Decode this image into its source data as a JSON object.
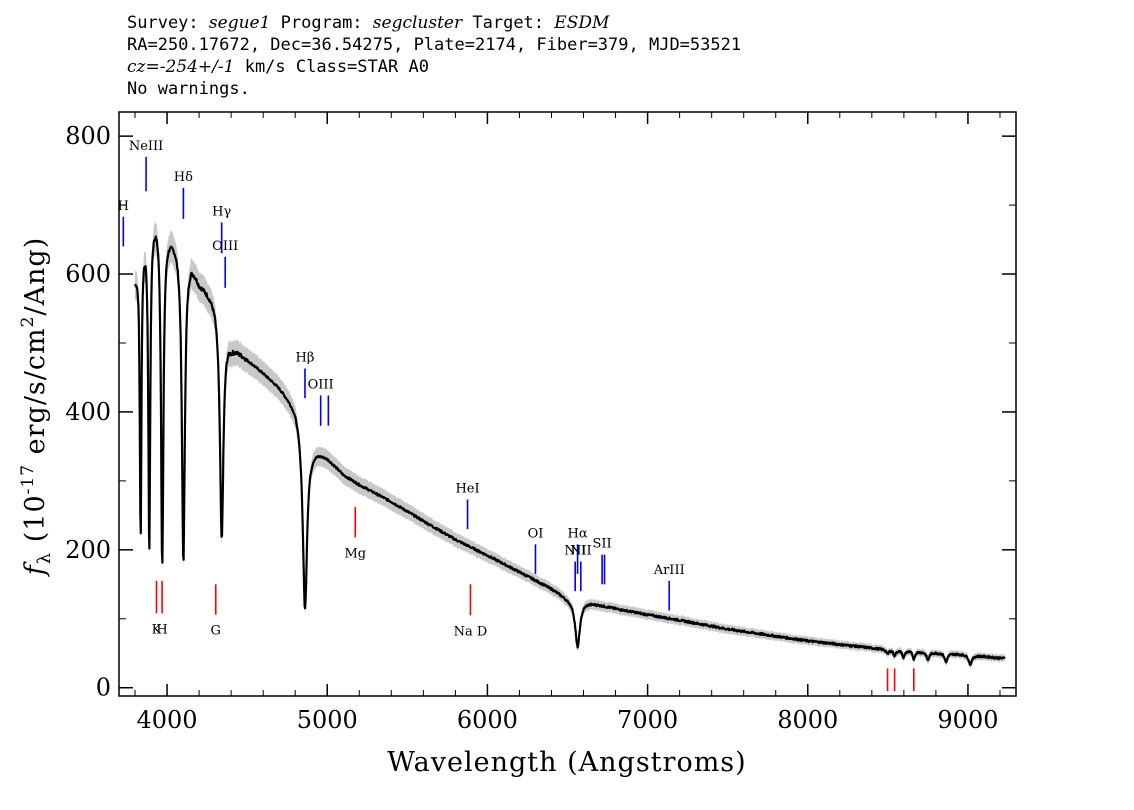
{
  "header": {
    "survey_label": "Survey:",
    "survey": "segue1",
    "program_label": "Program:",
    "program": "segcluster",
    "target_label": "Target:",
    "target": "ESDM",
    "line2": "RA=250.17672, Dec=36.54275, Plate=2174, Fiber=379, MJD=53521",
    "cz_label": "cz=",
    "cz": "-254+/-1",
    "cz_rest": " km/s Class=STAR A0",
    "warnings": "No warnings."
  },
  "chart_data": {
    "type": "line",
    "xlabel": "Wavelength (Angstroms)",
    "ylabel_prefix": "f",
    "ylabel_sub": "λ",
    "ylabel_rest": " (10",
    "ylabel_exp": "-17",
    "ylabel_units": " erg/s/cm",
    "ylabel_units_exp": "2",
    "ylabel_end": "/Ang)",
    "xlim": [
      3700,
      9300
    ],
    "ylim": [
      -12,
      835
    ],
    "x_ticks": [
      4000,
      5000,
      6000,
      7000,
      8000,
      9000
    ],
    "y_ticks": [
      0,
      200,
      400,
      600,
      800
    ],
    "line_color": "#000000",
    "error_color": "#b0b0b0",
    "emission_color": "#0000ff",
    "absorption_color": "#ff0000",
    "continuum": [
      [
        3800,
        600
      ],
      [
        3850,
        660
      ],
      [
        3900,
        690
      ],
      [
        3950,
        695
      ],
      [
        4000,
        668
      ],
      [
        4050,
        655
      ],
      [
        4150,
        625
      ],
      [
        4200,
        592
      ],
      [
        4300,
        565
      ],
      [
        4400,
        500
      ],
      [
        4500,
        478
      ],
      [
        4600,
        458
      ],
      [
        4700,
        437
      ],
      [
        4800,
        410
      ],
      [
        4900,
        352
      ],
      [
        5000,
        335
      ],
      [
        5100,
        310
      ],
      [
        5200,
        295
      ],
      [
        5400,
        270
      ],
      [
        5600,
        242
      ],
      [
        5800,
        215
      ],
      [
        6000,
        192
      ],
      [
        6200,
        168
      ],
      [
        6400,
        144
      ],
      [
        6500,
        130
      ],
      [
        6600,
        126
      ],
      [
        6800,
        115
      ],
      [
        7000,
        106
      ],
      [
        7200,
        98
      ],
      [
        7500,
        85
      ],
      [
        8000,
        68
      ],
      [
        8500,
        55
      ],
      [
        9000,
        48
      ],
      [
        9200,
        43
      ]
    ],
    "absorption_features": [
      {
        "center": 3835,
        "depth": 420,
        "width": 6
      },
      {
        "center": 3889,
        "depth": 480,
        "width": 7
      },
      {
        "center": 3970,
        "depth": 500,
        "width": 9
      },
      {
        "center": 4102,
        "depth": 455,
        "width": 11
      },
      {
        "center": 4341,
        "depth": 320,
        "width": 13
      },
      {
        "center": 4861,
        "depth": 260,
        "width": 16
      },
      {
        "center": 6563,
        "depth": 68,
        "width": 18
      },
      {
        "center": 8498,
        "depth": 6,
        "width": 8
      },
      {
        "center": 8542,
        "depth": 8,
        "width": 8
      },
      {
        "center": 8598,
        "depth": 10,
        "width": 8
      },
      {
        "center": 8662,
        "depth": 11,
        "width": 8
      },
      {
        "center": 8750,
        "depth": 12,
        "width": 9
      },
      {
        "center": 8863,
        "depth": 13,
        "width": 10
      },
      {
        "center": 9015,
        "depth": 14,
        "width": 12
      }
    ],
    "emission_lines": [
      {
        "label": "NeIII",
        "x": 3869,
        "y1": 720,
        "y2": 770
      },
      {
        "label": "Hδ",
        "x": 4102,
        "y1": 680,
        "y2": 725
      },
      {
        "label": "Hγ",
        "x": 4341,
        "y1": 630,
        "y2": 675
      },
      {
        "label": "OIII",
        "x": 4363,
        "y1": 580,
        "y2": 625
      },
      {
        "label": "Hβ",
        "x": 4861,
        "y1": 420,
        "y2": 463
      },
      {
        "label": "OIII",
        "x": 4959,
        "y1": 380,
        "y2": 424
      },
      {
        "label": "",
        "x": 5007,
        "y1": 380,
        "y2": 424
      },
      {
        "label": "HeI",
        "x": 5876,
        "y1": 230,
        "y2": 273
      },
      {
        "label": "OI",
        "x": 6300,
        "y1": 165,
        "y2": 208
      },
      {
        "label": "NII",
        "x": 6548,
        "y1": 140,
        "y2": 183
      },
      {
        "label": "Hα",
        "x": 6563,
        "y1": 165,
        "y2": 208
      },
      {
        "label": "NII",
        "x": 6583,
        "y1": 140,
        "y2": 183
      },
      {
        "label": "SII",
        "x": 6716,
        "y1": 150,
        "y2": 193
      },
      {
        "label": "",
        "x": 6731,
        "y1": 150,
        "y2": 193
      },
      {
        "label": "ArIII",
        "x": 7135,
        "y1": 112,
        "y2": 155
      },
      {
        "label": "H",
        "x": 3727,
        "y1": 640,
        "y2": 683
      }
    ],
    "absorption_lines": [
      {
        "label": "K",
        "x": 3934,
        "y1": 108,
        "y2": 155
      },
      {
        "label": "H",
        "x": 3969,
        "y1": 108,
        "y2": 155
      },
      {
        "label": "G",
        "x": 4304,
        "y1": 106,
        "y2": 150
      },
      {
        "label": "Mg",
        "x": 5175,
        "y1": 218,
        "y2": 262
      },
      {
        "label": "Na D",
        "x": 5894,
        "y1": 105,
        "y2": 150
      },
      {
        "label": "",
        "x": 8498,
        "y1": -5,
        "y2": 28
      },
      {
        "label": "",
        "x": 8542,
        "y1": -5,
        "y2": 28
      },
      {
        "label": "",
        "x": 8662,
        "y1": -5,
        "y2": 28
      }
    ]
  }
}
